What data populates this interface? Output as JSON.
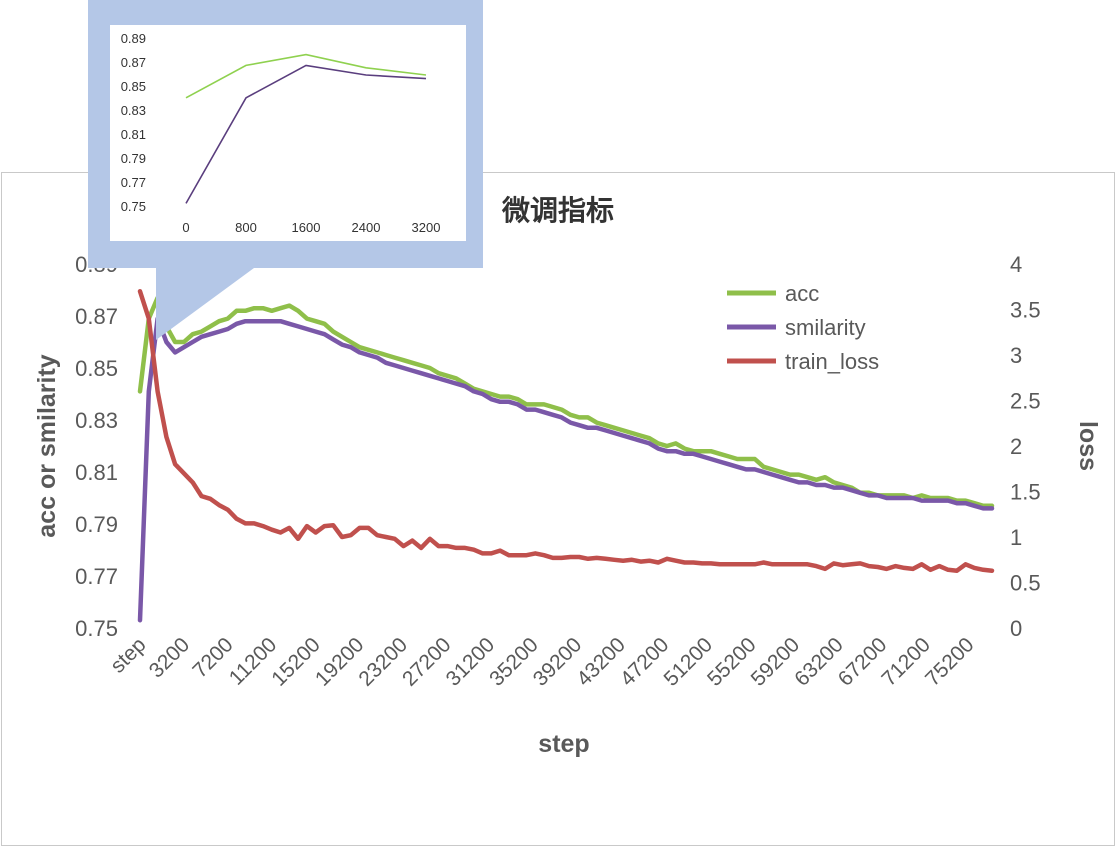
{
  "chart_data": [
    {
      "type": "line",
      "title": "微调指标",
      "xlabel": "step",
      "ylabel": "acc or smilarity",
      "y2label": "loss",
      "ylim": [
        0.75,
        0.89
      ],
      "y2lim": [
        0,
        4
      ],
      "yticks": [
        "0.75",
        "0.77",
        "0.79",
        "0.81",
        "0.83",
        "0.85",
        "0.87",
        "0.89"
      ],
      "y2ticks": [
        "0",
        "0.5",
        "1",
        "1.5",
        "2",
        "2.5",
        "3",
        "3.5",
        "4"
      ],
      "categories": [
        "step",
        "3200",
        "7200",
        "11200",
        "15200",
        "19200",
        "23200",
        "27200",
        "31200",
        "35200",
        "39200",
        "43200",
        "47200",
        "51200",
        "55200",
        "59200",
        "63200",
        "67200",
        "71200",
        "75200"
      ],
      "legend": "top-right",
      "series": [
        {
          "name": "acc",
          "color": "#8fbf4a",
          "axis": "left",
          "x": [
            0,
            800,
            1600,
            2400,
            3200,
            4000,
            4800,
            5600,
            6400,
            7200,
            8000,
            8800,
            9600,
            10400,
            11200,
            12000,
            12800,
            13600,
            14400,
            15200,
            16000,
            16800,
            17600,
            18400,
            19200,
            20000,
            20800,
            21600,
            22400,
            23200,
            24000,
            24800,
            25600,
            26400,
            27200,
            28000,
            28800,
            29600,
            30400,
            31200,
            32000,
            32800,
            33600,
            34400,
            35200,
            36000,
            36800,
            37600,
            38400,
            39200,
            40000,
            40800,
            41600,
            42400,
            43200,
            44000,
            44800,
            45600,
            46400,
            47200,
            48000,
            48800,
            49600,
            50400,
            51200,
            52000,
            52800,
            53600,
            54400,
            55200,
            56000,
            56800,
            57600,
            58400,
            59200,
            60000,
            60800,
            61600,
            62400,
            63200,
            64000,
            64800,
            65600,
            66400,
            67200,
            68000,
            68800,
            69600,
            70400,
            71200,
            72000,
            72800,
            73600,
            74400,
            75200,
            76000,
            76800,
            77600
          ],
          "values": [
            0.841,
            0.869,
            0.877,
            0.866,
            0.86,
            0.86,
            0.863,
            0.864,
            0.866,
            0.868,
            0.869,
            0.872,
            0.872,
            0.873,
            0.873,
            0.872,
            0.873,
            0.874,
            0.872,
            0.869,
            0.868,
            0.867,
            0.864,
            0.862,
            0.86,
            0.858,
            0.857,
            0.856,
            0.855,
            0.854,
            0.853,
            0.852,
            0.851,
            0.85,
            0.848,
            0.847,
            0.846,
            0.844,
            0.842,
            0.841,
            0.84,
            0.839,
            0.839,
            0.838,
            0.836,
            0.836,
            0.836,
            0.835,
            0.834,
            0.832,
            0.831,
            0.831,
            0.829,
            0.828,
            0.827,
            0.826,
            0.825,
            0.824,
            0.823,
            0.821,
            0.82,
            0.821,
            0.819,
            0.818,
            0.818,
            0.818,
            0.817,
            0.816,
            0.815,
            0.815,
            0.815,
            0.812,
            0.811,
            0.81,
            0.809,
            0.809,
            0.808,
            0.807,
            0.808,
            0.806,
            0.805,
            0.804,
            0.802,
            0.802,
            0.801,
            0.801,
            0.801,
            0.801,
            0.8,
            0.801,
            0.8,
            0.8,
            0.8,
            0.799,
            0.799,
            0.798,
            0.797,
            0.797
          ]
        },
        {
          "name": "smilarity",
          "color": "#7a58a8",
          "axis": "left",
          "x": [
            0,
            800,
            1600,
            2400,
            3200,
            4000,
            4800,
            5600,
            6400,
            7200,
            8000,
            8800,
            9600,
            10400,
            11200,
            12000,
            12800,
            13600,
            14400,
            15200,
            16000,
            16800,
            17600,
            18400,
            19200,
            20000,
            20800,
            21600,
            22400,
            23200,
            24000,
            24800,
            25600,
            26400,
            27200,
            28000,
            28800,
            29600,
            30400,
            31200,
            32000,
            32800,
            33600,
            34400,
            35200,
            36000,
            36800,
            37600,
            38400,
            39200,
            40000,
            40800,
            41600,
            42400,
            43200,
            44000,
            44800,
            45600,
            46400,
            47200,
            48000,
            48800,
            49600,
            50400,
            51200,
            52000,
            52800,
            53600,
            54400,
            55200,
            56000,
            56800,
            57600,
            58400,
            59200,
            60000,
            60800,
            61600,
            62400,
            63200,
            64000,
            64800,
            65600,
            66400,
            67200,
            68000,
            68800,
            69600,
            70400,
            71200,
            72000,
            72800,
            73600,
            74400,
            75200,
            76000,
            76800,
            77600
          ],
          "values": [
            0.753,
            0.841,
            0.869,
            0.86,
            0.856,
            0.858,
            0.86,
            0.862,
            0.863,
            0.864,
            0.865,
            0.867,
            0.868,
            0.868,
            0.868,
            0.868,
            0.868,
            0.867,
            0.866,
            0.865,
            0.864,
            0.863,
            0.861,
            0.859,
            0.858,
            0.856,
            0.855,
            0.854,
            0.852,
            0.851,
            0.85,
            0.849,
            0.848,
            0.847,
            0.846,
            0.845,
            0.844,
            0.843,
            0.841,
            0.84,
            0.838,
            0.837,
            0.837,
            0.836,
            0.834,
            0.834,
            0.833,
            0.832,
            0.831,
            0.829,
            0.828,
            0.827,
            0.827,
            0.826,
            0.825,
            0.824,
            0.823,
            0.822,
            0.821,
            0.819,
            0.818,
            0.818,
            0.817,
            0.817,
            0.816,
            0.815,
            0.814,
            0.813,
            0.812,
            0.811,
            0.811,
            0.81,
            0.809,
            0.808,
            0.807,
            0.806,
            0.806,
            0.805,
            0.805,
            0.804,
            0.804,
            0.803,
            0.802,
            0.801,
            0.801,
            0.8,
            0.8,
            0.8,
            0.8,
            0.799,
            0.799,
            0.799,
            0.799,
            0.798,
            0.798,
            0.797,
            0.796,
            0.796
          ]
        },
        {
          "name": "train_loss",
          "color": "#c0504d",
          "axis": "right",
          "x": [
            0,
            800,
            1600,
            2400,
            3200,
            4000,
            4800,
            5600,
            6400,
            7200,
            8000,
            8800,
            9600,
            10400,
            11200,
            12000,
            12800,
            13600,
            14400,
            15200,
            16000,
            16800,
            17600,
            18400,
            19200,
            20000,
            20800,
            21600,
            22400,
            23200,
            24000,
            24800,
            25600,
            26400,
            27200,
            28000,
            28800,
            29600,
            30400,
            31200,
            32000,
            32800,
            33600,
            34400,
            35200,
            36000,
            36800,
            37600,
            38400,
            39200,
            40000,
            40800,
            41600,
            42400,
            43200,
            44000,
            44800,
            45600,
            46400,
            47200,
            48000,
            48800,
            49600,
            50400,
            51200,
            52000,
            52800,
            53600,
            54400,
            55200,
            56000,
            56800,
            57600,
            58400,
            59200,
            60000,
            60800,
            61600,
            62400,
            63200,
            64000,
            64800,
            65600,
            66400,
            67200,
            68000,
            68800,
            69600,
            70400,
            71200,
            72000,
            72800,
            73600,
            74400,
            75200,
            76000,
            76800,
            77600
          ],
          "values": [
            3.7,
            3.4,
            2.6,
            2.1,
            1.8,
            1.7,
            1.6,
            1.45,
            1.42,
            1.35,
            1.3,
            1.2,
            1.15,
            1.15,
            1.12,
            1.08,
            1.05,
            1.1,
            0.98,
            1.12,
            1.05,
            1.12,
            1.13,
            1.0,
            1.02,
            1.1,
            1.1,
            1.02,
            1.0,
            0.98,
            0.9,
            0.96,
            0.88,
            0.98,
            0.9,
            0.9,
            0.88,
            0.88,
            0.86,
            0.82,
            0.82,
            0.85,
            0.8,
            0.8,
            0.8,
            0.82,
            0.8,
            0.77,
            0.77,
            0.78,
            0.78,
            0.76,
            0.77,
            0.76,
            0.75,
            0.74,
            0.75,
            0.73,
            0.74,
            0.72,
            0.76,
            0.74,
            0.72,
            0.72,
            0.71,
            0.71,
            0.7,
            0.7,
            0.7,
            0.7,
            0.7,
            0.72,
            0.7,
            0.7,
            0.7,
            0.7,
            0.7,
            0.68,
            0.65,
            0.71,
            0.69,
            0.7,
            0.71,
            0.68,
            0.67,
            0.65,
            0.68,
            0.66,
            0.65,
            0.7,
            0.64,
            0.68,
            0.64,
            0.63,
            0.7,
            0.66,
            0.64,
            0.63
          ]
        }
      ]
    },
    {
      "type": "line",
      "ylim": [
        0.75,
        0.89
      ],
      "yticks": [
        "0.75",
        "0.77",
        "0.79",
        "0.81",
        "0.83",
        "0.85",
        "0.87",
        "0.89"
      ],
      "categories": [
        "0",
        "800",
        "1600",
        "2400",
        "3200"
      ],
      "series": [
        {
          "color": "#8fd14f",
          "values": [
            0.841,
            0.868,
            0.877,
            0.866,
            0.86
          ]
        },
        {
          "color": "#5a3e7e",
          "values": [
            0.753,
            0.841,
            0.868,
            0.86,
            0.857
          ]
        }
      ]
    }
  ]
}
